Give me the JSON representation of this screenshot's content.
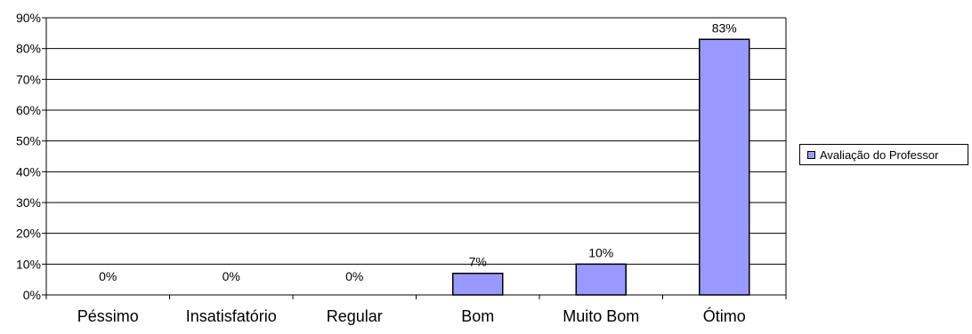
{
  "chart_data": {
    "type": "bar",
    "categories": [
      "Péssimo",
      "Insatisfatório",
      "Regular",
      "Bom",
      "Muito Bom",
      "Ótimo"
    ],
    "series": [
      {
        "name": "Avaliação do Professor",
        "values": [
          0,
          0,
          0,
          7,
          10,
          83
        ],
        "labels": [
          "0%",
          "0%",
          "0%",
          "7%",
          "10%",
          "83%"
        ],
        "color": "#9999ff"
      }
    ],
    "yticks": [
      "0%",
      "10%",
      "20%",
      "30%",
      "40%",
      "50%",
      "60%",
      "70%",
      "80%",
      "90%"
    ],
    "ylim": [
      0,
      90
    ],
    "grid": true,
    "legend_position": "right"
  }
}
